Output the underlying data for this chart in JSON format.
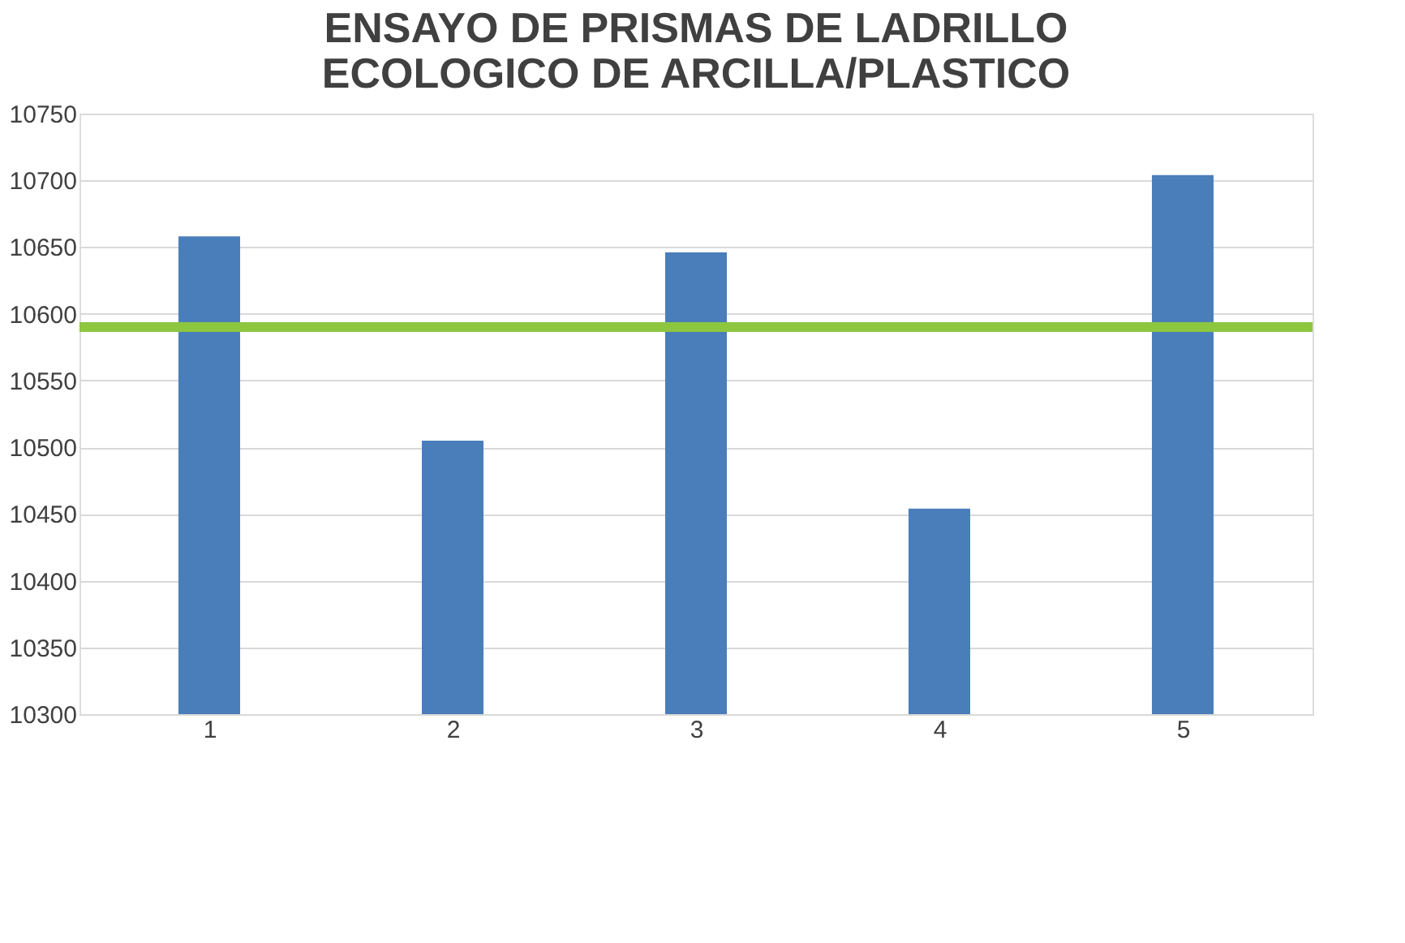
{
  "chart_data": {
    "type": "bar",
    "title": "ENSAYO DE PRISMAS DE LADRILLO\nECOLOGICO DE ARCILLA/PLASTICO",
    "categories": [
      "1",
      "2",
      "3",
      "4",
      "5"
    ],
    "series": [
      {
        "color": "#4a7ebb",
        "values": [
          10658,
          10505,
          10646,
          10454,
          10704
        ]
      }
    ],
    "ylim": [
      10300,
      10750
    ],
    "yticks": [
      10300,
      10350,
      10400,
      10450,
      10500,
      10550,
      10600,
      10650,
      10700,
      10750
    ],
    "grid": "y",
    "ref_lines": [
      {
        "axis": "y",
        "value": 10590,
        "color": "#8dc63f"
      }
    ]
  }
}
